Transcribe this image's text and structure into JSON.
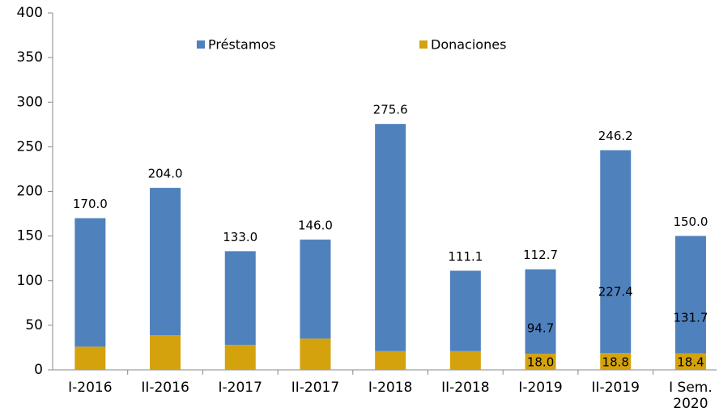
{
  "chart_data": {
    "type": "stacked_bar",
    "categories": [
      "I-2016",
      "II-2016",
      "I-2017",
      "II-2017",
      "I-2018",
      "II-2018",
      "I-2019",
      "II-2019",
      "I Sem. 2020"
    ],
    "series": [
      {
        "name": "Donaciones",
        "color": "#d4a20c",
        "values": [
          26,
          39,
          28,
          35,
          21,
          21,
          18.0,
          18.8,
          18.4
        ],
        "value_labels": [
          null,
          null,
          null,
          null,
          null,
          null,
          "18.0",
          "18.8",
          "18.4"
        ]
      },
      {
        "name": "Préstamos",
        "color": "#4f81bd",
        "values": [
          144,
          165,
          105,
          111,
          254.6,
          90.1,
          94.7,
          227.4,
          131.7
        ],
        "value_labels": [
          null,
          null,
          null,
          null,
          null,
          null,
          "94.7",
          "227.4",
          "131.7"
        ]
      }
    ],
    "totals": [
      170.0,
      204.0,
      133.0,
      146.0,
      275.6,
      111.1,
      112.7,
      246.2,
      150.0
    ],
    "total_labels": [
      "170.0",
      "204.0",
      "133.0",
      "146.0",
      "275.6",
      "111.1",
      "112.7",
      "246.2",
      "150.0"
    ],
    "ylim": [
      0,
      400
    ],
    "yticks": [
      0,
      50,
      100,
      150,
      200,
      250,
      300,
      350,
      400
    ],
    "grid": false
  }
}
